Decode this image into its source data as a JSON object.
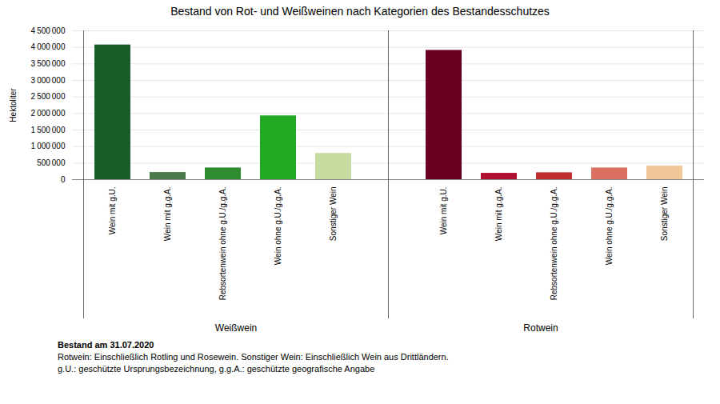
{
  "chart_data": {
    "type": "bar",
    "title": "Bestand von Rot- und Weißweinen nach Kategorien des Bestandesschutzes",
    "ylabel": "Hektoliter",
    "groups": [
      {
        "label": "Weißwein",
        "categories": [
          "Wein mit g.U.",
          "Wein mit g.g.A.",
          "Rebsortenwein ohne g.U./g.g.A.",
          "Wein ohne g.U./g.g.A.",
          "Sonstiger Wein"
        ],
        "values": [
          4072404,
          215161,
          353821,
          1927955,
          794344
        ],
        "colors": [
          "#1a5c2a",
          "#4a7a4a",
          "#2d8c2d",
          "#22aa22",
          "#c8dca0"
        ]
      },
      {
        "label": "Rotwein",
        "categories": [
          "Wein mit g.U.",
          "Wein mit g.g.A.",
          "Rebsortenwein ohne g.U./g.g.A.",
          "Wein ohne g.U./g.g.A.",
          "Sonstiger Wein"
        ],
        "values": [
          3909220,
          191746,
          208176,
          353195,
          409989
        ],
        "colors": [
          "#6b0020",
          "#b01030",
          "#c03030",
          "#d97060",
          "#f0c898"
        ]
      }
    ],
    "ylim": [
      0,
      4500000
    ],
    "yticks": [
      0,
      {
        "value": 500000,
        "label": "500 000"
      },
      {
        "value": 1000000,
        "label": "1 000 000"
      },
      {
        "value": 1500000,
        "label": "1 500 000"
      },
      {
        "value": 2000000,
        "label": "2 000 000"
      },
      {
        "value": 2500000,
        "label": "2 500 000"
      },
      {
        "value": 3000000,
        "label": "3 000 000"
      },
      {
        "value": 3500000,
        "label": "3 500 000"
      },
      {
        "value": 4000000,
        "label": "4 000 000"
      },
      {
        "value": 4500000,
        "label": "4 500 000"
      }
    ],
    "grid": true,
    "notes": [
      "Bestand am 31.07.2020",
      "Rotwein: Einschließlich Rotling und Rosewein.  Sonstiger Wein: Einschließlich Wein aus Drittländern.",
      "g.U.: geschützte Ursprungsbezeichnung,  g.g.A.: geschützte geografische Angabe"
    ]
  }
}
